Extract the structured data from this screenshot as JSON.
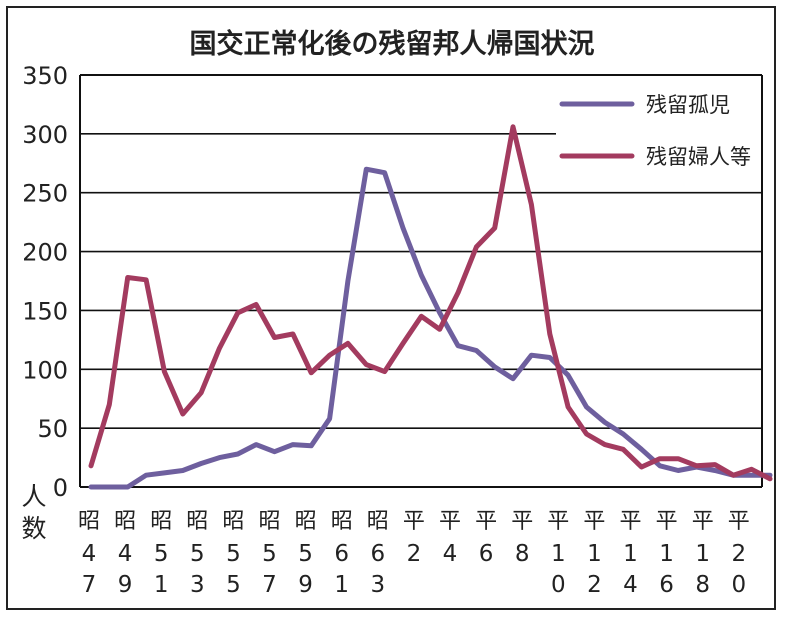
{
  "chart_data": {
    "type": "line",
    "title": "国交正常化後の残留邦人帰国状況",
    "ylabel": "人数",
    "ylim": [
      0,
      350
    ],
    "yticks": [
      0,
      50,
      100,
      150,
      200,
      250,
      300,
      350
    ],
    "grid": true,
    "legend_position": "top-right",
    "categories": [
      [
        "昭",
        "4",
        "7"
      ],
      [
        "昭",
        "4",
        "9"
      ],
      [
        "昭",
        "5",
        "1"
      ],
      [
        "昭",
        "5",
        "3"
      ],
      [
        "昭",
        "5",
        "5"
      ],
      [
        "昭",
        "5",
        "7"
      ],
      [
        "昭",
        "5",
        "9"
      ],
      [
        "昭",
        "6",
        "1"
      ],
      [
        "昭",
        "6",
        "3"
      ],
      [
        "平",
        "2",
        ""
      ],
      [
        "平",
        "4",
        ""
      ],
      [
        "平",
        "6",
        ""
      ],
      [
        "平",
        "8",
        ""
      ],
      [
        "平",
        "1",
        "0"
      ],
      [
        "平",
        "1",
        "2"
      ],
      [
        "平",
        "1",
        "4"
      ],
      [
        "平",
        "1",
        "6"
      ],
      [
        "平",
        "1",
        "8"
      ],
      [
        "平",
        "2",
        "0"
      ]
    ],
    "x_start_year": 1972,
    "x": [
      1972,
      1973,
      1974,
      1975,
      1976,
      1977,
      1978,
      1979,
      1980,
      1981,
      1982,
      1983,
      1984,
      1985,
      1986,
      1987,
      1988,
      1989,
      1990,
      1991,
      1992,
      1993,
      1994,
      1995,
      1996,
      1997,
      1998,
      1999,
      2000,
      2001,
      2002,
      2003,
      2004,
      2005,
      2006,
      2007,
      2008,
      2009
    ],
    "series": [
      {
        "name": "残留孤児",
        "color": "#6e5f9e",
        "values": [
          0,
          0,
          0,
          10,
          12,
          14,
          20,
          25,
          28,
          36,
          30,
          36,
          35,
          58,
          175,
          270,
          267,
          220,
          180,
          148,
          120,
          116,
          102,
          92,
          112,
          110,
          95,
          68,
          55,
          45,
          32,
          18,
          14,
          17,
          14,
          10,
          10,
          10
        ]
      },
      {
        "name": "残留婦人等",
        "color": "#a33b5f",
        "values": [
          18,
          70,
          178,
          176,
          98,
          62,
          80,
          118,
          148,
          155,
          127,
          130,
          97,
          112,
          122,
          104,
          98,
          122,
          145,
          134,
          165,
          204,
          220,
          306,
          240,
          130,
          68,
          45,
          36,
          32,
          17,
          24,
          24,
          18,
          19,
          10,
          15,
          7
        ]
      }
    ]
  }
}
